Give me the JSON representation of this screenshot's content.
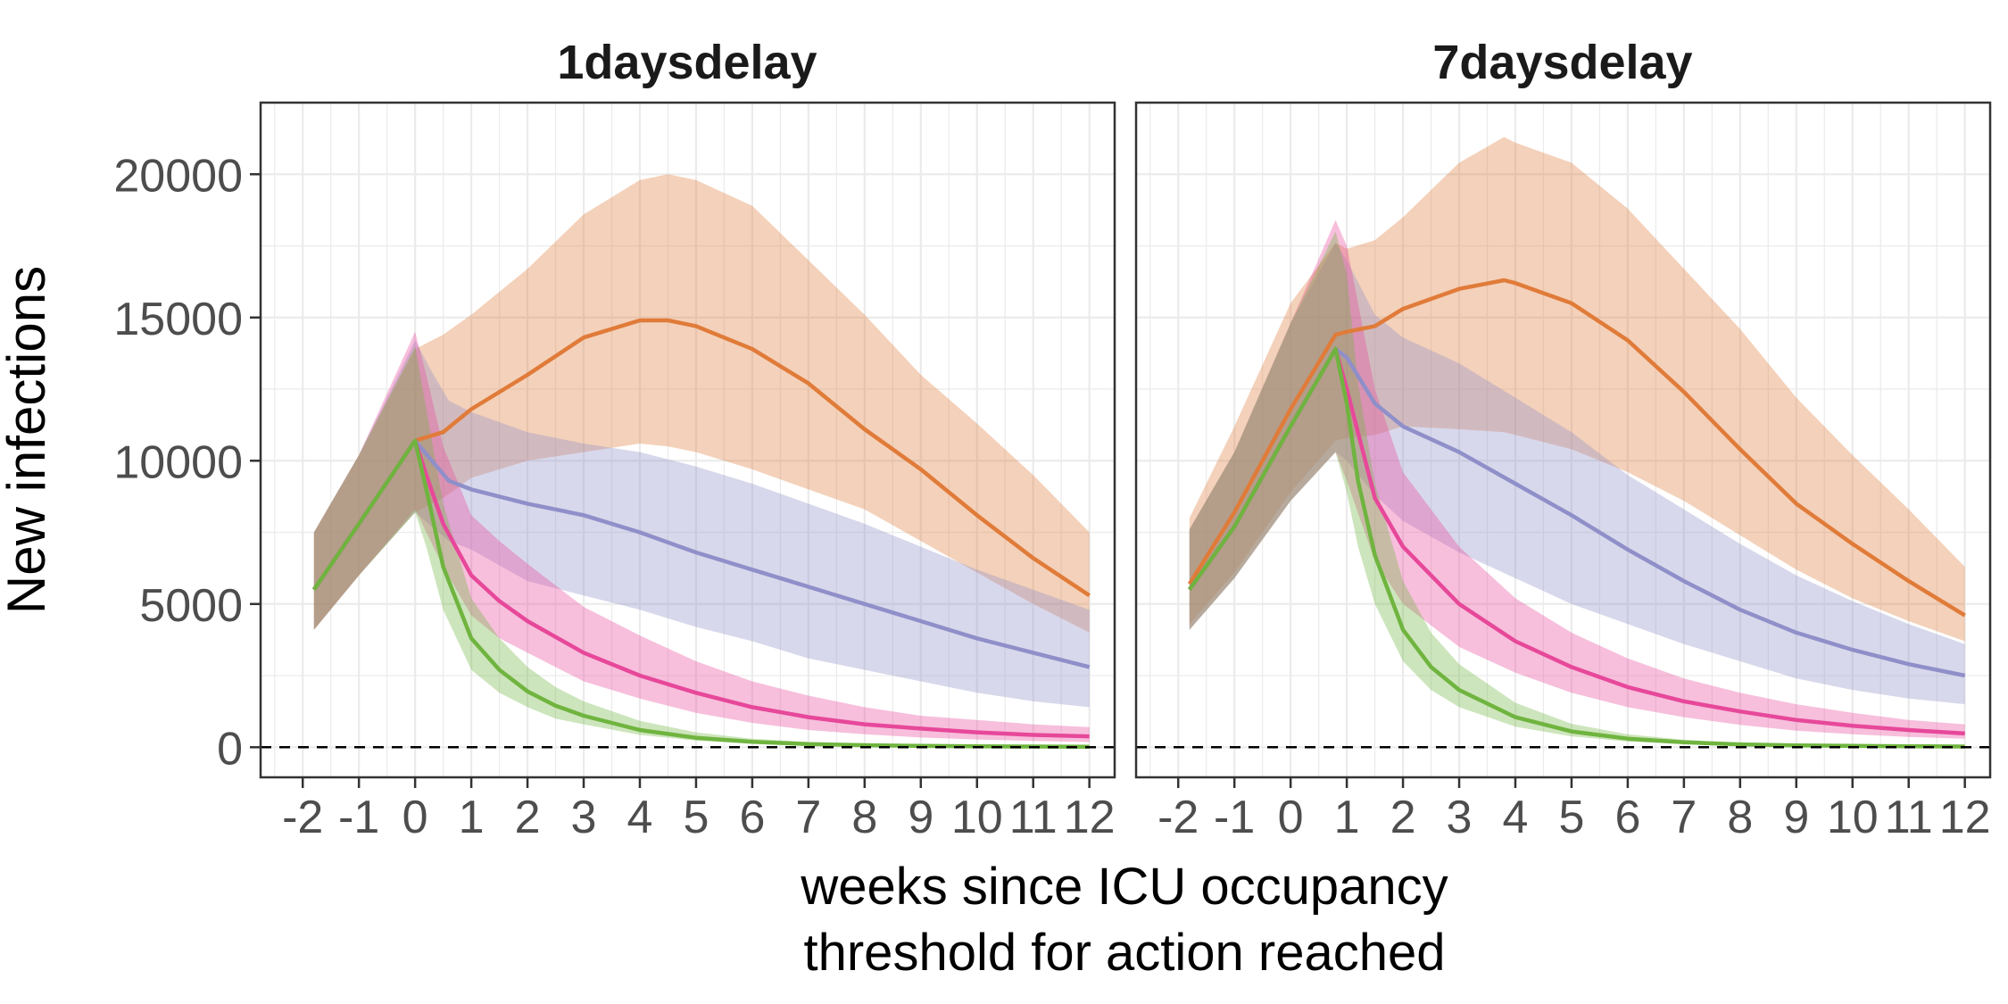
{
  "chart_data": {
    "type": "line",
    "title": "",
    "ylabel": "New infections",
    "xlabel_lines": [
      "weeks since ICU occupancy",
      "threshold for action reached"
    ],
    "x_ticks": [
      -2,
      -1,
      0,
      1,
      2,
      3,
      4,
      5,
      6,
      7,
      8,
      9,
      10,
      11,
      12
    ],
    "x_tick_labels": [
      "-2",
      "-1",
      "0",
      "1",
      "2",
      "3",
      "4",
      "5",
      "6",
      "7",
      "8",
      "9",
      "10",
      "11",
      "12"
    ],
    "xlim": [
      -2.75,
      12.45
    ],
    "y_ticks": [
      0,
      5000,
      10000,
      15000,
      20000
    ],
    "y_tick_labels": [
      "0",
      "5000",
      "10000",
      "15000",
      "20000"
    ],
    "ylim": [
      -1050,
      22500
    ],
    "grid": true,
    "reference_line": {
      "y": 0,
      "style": "dashed"
    },
    "legend": "none",
    "colors": {
      "orange": "#e07b39",
      "purple": "#8f8fc9",
      "pink": "#e7489a",
      "green": "#6fb43f",
      "panel_border": "#333333",
      "grid": "#ebebeb"
    },
    "panels": [
      {
        "title": "1daysdelay",
        "series": [
          {
            "color": "orange",
            "x": [
              -1.8,
              -1,
              0,
              0.5,
              1,
              2,
              3,
              4,
              4.5,
              5,
              6,
              7,
              8,
              9,
              10,
              11,
              12
            ],
            "y": [
              5500,
              7800,
              10700,
              11000,
              11800,
              13000,
              14300,
              14900,
              14900,
              14700,
              13900,
              12700,
              11100,
              9700,
              8100,
              6600,
              5300
            ],
            "lower": [
              4100,
              6000,
              8200,
              8700,
              9400,
              10000,
              10300,
              10600,
              10500,
              10300,
              9700,
              9000,
              8300,
              7200,
              6100,
              5000,
              4000
            ],
            "upper": [
              7500,
              10200,
              13900,
              14400,
              15100,
              16700,
              18600,
              19800,
              20000,
              19800,
              18900,
              17000,
              15100,
              13000,
              11300,
              9500,
              7500
            ]
          },
          {
            "color": "purple",
            "x": [
              -1.8,
              -1,
              0,
              0.3,
              0.6,
              1,
              2,
              3,
              4,
              5,
              6,
              7,
              8,
              9,
              10,
              11,
              12
            ],
            "y": [
              5500,
              7800,
              10700,
              10000,
              9300,
              9000,
              8500,
              8100,
              7500,
              6800,
              6200,
              5600,
              5000,
              4400,
              3800,
              3300,
              2800
            ],
            "lower": [
              4100,
              6000,
              8200,
              7700,
              7200,
              6900,
              5800,
              5300,
              4800,
              4200,
              3700,
              3100,
              2700,
              2300,
              1900,
              1600,
              1400
            ],
            "upper": [
              7500,
              10200,
              14200,
              13100,
              12100,
              11700,
              11000,
              10600,
              10300,
              9800,
              9200,
              8500,
              7800,
              7000,
              6200,
              5500,
              4800
            ]
          },
          {
            "color": "pink",
            "x": [
              -1.8,
              -1,
              0,
              0.2,
              0.5,
              1,
              1.5,
              2,
              3,
              4,
              5,
              6,
              7,
              8,
              9,
              10,
              11,
              12
            ],
            "y": [
              5500,
              7800,
              10700,
              9500,
              7800,
              6000,
              5100,
              4400,
              3300,
              2500,
              1900,
              1400,
              1050,
              800,
              650,
              520,
              430,
              380
            ],
            "lower": [
              4100,
              6000,
              8300,
              7500,
              6300,
              4600,
              3800,
              3300,
              2300,
              1700,
              1200,
              850,
              600,
              450,
              340,
              270,
              220,
              180
            ],
            "upper": [
              7500,
              10200,
              14500,
              13000,
              10500,
              8100,
              7200,
              6400,
              4900,
              3900,
              3000,
              2300,
              1800,
              1400,
              1100,
              950,
              800,
              700
            ]
          },
          {
            "color": "green",
            "x": [
              -1.8,
              -1,
              0,
              0.2,
              0.5,
              1,
              1.5,
              2,
              2.5,
              3,
              4,
              5,
              6,
              7,
              8,
              9,
              10,
              11,
              12
            ],
            "y": [
              5500,
              7800,
              10700,
              9000,
              6300,
              3800,
              2700,
              1950,
              1450,
              1100,
              600,
              330,
              190,
              110,
              70,
              45,
              30,
              25,
              20
            ],
            "lower": [
              4100,
              6000,
              8200,
              7000,
              4800,
              2700,
              1900,
              1400,
              1000,
              800,
              430,
              230,
              130,
              75,
              45,
              30,
              20,
              15,
              10
            ],
            "upper": [
              7500,
              10200,
              14000,
              11800,
              8500,
              5200,
              3800,
              2800,
              2100,
              1600,
              920,
              520,
              300,
              180,
              110,
              75,
              55,
              40,
              30
            ]
          }
        ]
      },
      {
        "title": "7daysdelay",
        "series": [
          {
            "color": "orange",
            "x": [
              -1.8,
              -1,
              0,
              0.8,
              1,
              1.5,
              2,
              3,
              3.8,
              4,
              5,
              6,
              7,
              8,
              9,
              10,
              11,
              12
            ],
            "y": [
              5700,
              8200,
              11800,
              14400,
              14500,
              14700,
              15300,
              16000,
              16300,
              16200,
              15500,
              14200,
              12400,
              10400,
              8500,
              7100,
              5800,
              4600
            ],
            "lower": [
              4300,
              6100,
              8900,
              10700,
              10800,
              10900,
              11200,
              11100,
              11000,
              10900,
              10400,
              9600,
              8600,
              7400,
              6200,
              5200,
              4400,
              3700
            ],
            "upper": [
              8000,
              11200,
              15500,
              17600,
              17400,
              17700,
              18500,
              20400,
              21300,
              21100,
              20400,
              18800,
              16700,
              14600,
              12200,
              10200,
              8300,
              6300
            ]
          },
          {
            "color": "purple",
            "x": [
              -1.8,
              -1,
              0,
              0.8,
              1,
              1.5,
              2,
              3,
              4,
              5,
              6,
              7,
              8,
              9,
              10,
              11,
              12
            ],
            "y": [
              5500,
              7700,
              11200,
              13900,
              13600,
              12000,
              11200,
              10300,
              9200,
              8100,
              6900,
              5800,
              4800,
              4000,
              3400,
              2900,
              2500
            ],
            "lower": [
              4100,
              5900,
              8600,
              10300,
              10000,
              8800,
              7900,
              6800,
              5900,
              5000,
              4300,
              3600,
              3000,
              2400,
              2000,
              1700,
              1500
            ],
            "upper": [
              7600,
              10300,
              14800,
              17600,
              17000,
              15100,
              14300,
              13400,
              12200,
              11000,
              9500,
              8300,
              7100,
              6000,
              5100,
              4300,
              3600
            ]
          },
          {
            "color": "pink",
            "x": [
              -1.8,
              -1,
              0,
              0.8,
              1,
              1.5,
              2,
              3,
              4,
              5,
              6,
              7,
              8,
              9,
              10,
              11,
              12
            ],
            "y": [
              5500,
              7700,
              11200,
              13900,
              12500,
              8700,
              7000,
              5000,
              3700,
              2800,
              2100,
              1600,
              1250,
              950,
              750,
              600,
              480
            ],
            "lower": [
              4100,
              5900,
              8600,
              10300,
              9300,
              6500,
              5000,
              3500,
              2600,
              1900,
              1400,
              1050,
              780,
              580,
              450,
              360,
              300
            ],
            "upper": [
              7600,
              10300,
              14800,
              18400,
              17500,
              12500,
              9600,
              7000,
              5200,
              4000,
              3100,
              2400,
              1900,
              1500,
              1200,
              950,
              800
            ]
          },
          {
            "color": "green",
            "x": [
              -1.8,
              -1,
              0,
              0.8,
              1,
              1.2,
              1.5,
              2,
              2.5,
              3,
              4,
              5,
              6,
              7,
              8,
              9,
              10,
              11,
              12
            ],
            "y": [
              5500,
              7700,
              11200,
              13900,
              12000,
              9300,
              6700,
              4100,
              2800,
              2000,
              1050,
              550,
              300,
              170,
              100,
              65,
              45,
              35,
              25
            ],
            "lower": [
              4100,
              5900,
              8600,
              10300,
              8900,
              7000,
              5000,
              3000,
              2000,
              1400,
              720,
              380,
              200,
              110,
              65,
              40,
              30,
              22,
              15
            ],
            "upper": [
              7600,
              10300,
              14800,
              18000,
              16500,
              12700,
              9200,
              5800,
              4000,
              2900,
              1550,
              820,
              450,
              260,
              160,
              100,
              70,
              50,
              40
            ]
          }
        ]
      }
    ]
  }
}
